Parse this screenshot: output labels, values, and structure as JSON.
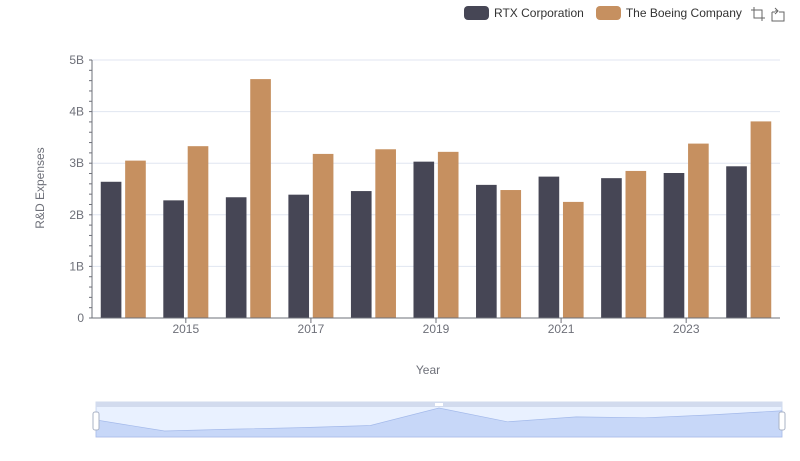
{
  "legend": {
    "items": [
      {
        "name": "RTX Corporation",
        "color": "#464655"
      },
      {
        "name": "The Boeing Company",
        "color": "#c69060"
      }
    ]
  },
  "toolbox": {
    "icons": [
      "zoom-icon",
      "restore-icon"
    ]
  },
  "chart_data": {
    "type": "bar",
    "xlabel": "Year",
    "ylabel": "R&D Expenses",
    "x": [
      2014,
      2015,
      2016,
      2017,
      2018,
      2019,
      2020,
      2021,
      2022,
      2023,
      2024
    ],
    "xtick_labels": [
      "2015",
      "2017",
      "2019",
      "2021",
      "2023"
    ],
    "xtick_values": [
      2015,
      2017,
      2019,
      2021,
      2023
    ],
    "ylim": [
      0,
      5000000000
    ],
    "yticks": [
      0,
      1000000000,
      2000000000,
      3000000000,
      4000000000,
      5000000000
    ],
    "ytick_labels": [
      "0",
      "1B",
      "2B",
      "3B",
      "4B",
      "5B"
    ],
    "grid": true,
    "legend_position": "top-right",
    "series": [
      {
        "name": "RTX Corporation",
        "color": "#464655",
        "values": [
          2640000000,
          2280000000,
          2340000000,
          2390000000,
          2460000000,
          3030000000,
          2580000000,
          2740000000,
          2710000000,
          2810000000,
          2940000000
        ]
      },
      {
        "name": "The Boeing Company",
        "color": "#c69060",
        "values": [
          3050000000,
          3330000000,
          4630000000,
          3180000000,
          3270000000,
          3220000000,
          2480000000,
          2250000000,
          2850000000,
          3380000000,
          3810000000
        ]
      }
    ],
    "data_zoom": {
      "range": [
        0,
        100
      ]
    }
  }
}
